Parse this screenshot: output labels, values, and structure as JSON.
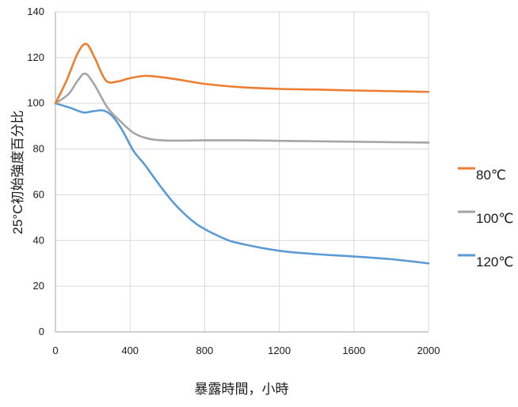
{
  "chart_data": {
    "type": "line",
    "title": "",
    "xlabel": "暴露時間，小時",
    "ylabel": "25°C初始強度百分比",
    "xlim": [
      0,
      2000
    ],
    "ylim": [
      0,
      140
    ],
    "x_ticks": [
      "0",
      "400",
      "800",
      "1200",
      "1600",
      "2000"
    ],
    "y_ticks": [
      "0",
      "20",
      "40",
      "60",
      "80",
      "100",
      "120",
      "140"
    ],
    "grid": true,
    "legend_position": "right",
    "series": [
      {
        "name": "80℃",
        "color": "#ED7D31",
        "points": [
          [
            0,
            100
          ],
          [
            60,
            110
          ],
          [
            120,
            122
          ],
          [
            165,
            126
          ],
          [
            210,
            120
          ],
          [
            270,
            110
          ],
          [
            330,
            109.5
          ],
          [
            400,
            111
          ],
          [
            480,
            112
          ],
          [
            560,
            111.5
          ],
          [
            650,
            110.5
          ],
          [
            800,
            108.5
          ],
          [
            1000,
            107
          ],
          [
            1200,
            106.3
          ],
          [
            1400,
            106
          ],
          [
            1600,
            105.6
          ],
          [
            1800,
            105.3
          ],
          [
            2000,
            105
          ]
        ]
      },
      {
        "name": "100℃",
        "color": "#A5A5A5",
        "points": [
          [
            0,
            100
          ],
          [
            70,
            104
          ],
          [
            120,
            110
          ],
          [
            160,
            113
          ],
          [
            210,
            108
          ],
          [
            280,
            98
          ],
          [
            350,
            92
          ],
          [
            420,
            87
          ],
          [
            500,
            84.5
          ],
          [
            600,
            83.7
          ],
          [
            800,
            83.8
          ],
          [
            1000,
            83.8
          ],
          [
            1200,
            83.6
          ],
          [
            1400,
            83.4
          ],
          [
            1600,
            83.2
          ],
          [
            1800,
            83
          ],
          [
            2000,
            82.8
          ]
        ]
      },
      {
        "name": "120℃",
        "color": "#5B9BD5",
        "points": [
          [
            0,
            100
          ],
          [
            80,
            98
          ],
          [
            150,
            96
          ],
          [
            200,
            96.5
          ],
          [
            260,
            96.8
          ],
          [
            310,
            94
          ],
          [
            360,
            88
          ],
          [
            420,
            79
          ],
          [
            480,
            73
          ],
          [
            560,
            64
          ],
          [
            650,
            55
          ],
          [
            760,
            47
          ],
          [
            900,
            41
          ],
          [
            1000,
            38.5
          ],
          [
            1200,
            35.5
          ],
          [
            1400,
            34
          ],
          [
            1600,
            33
          ],
          [
            1800,
            31.8
          ],
          [
            2000,
            30
          ]
        ]
      }
    ]
  }
}
